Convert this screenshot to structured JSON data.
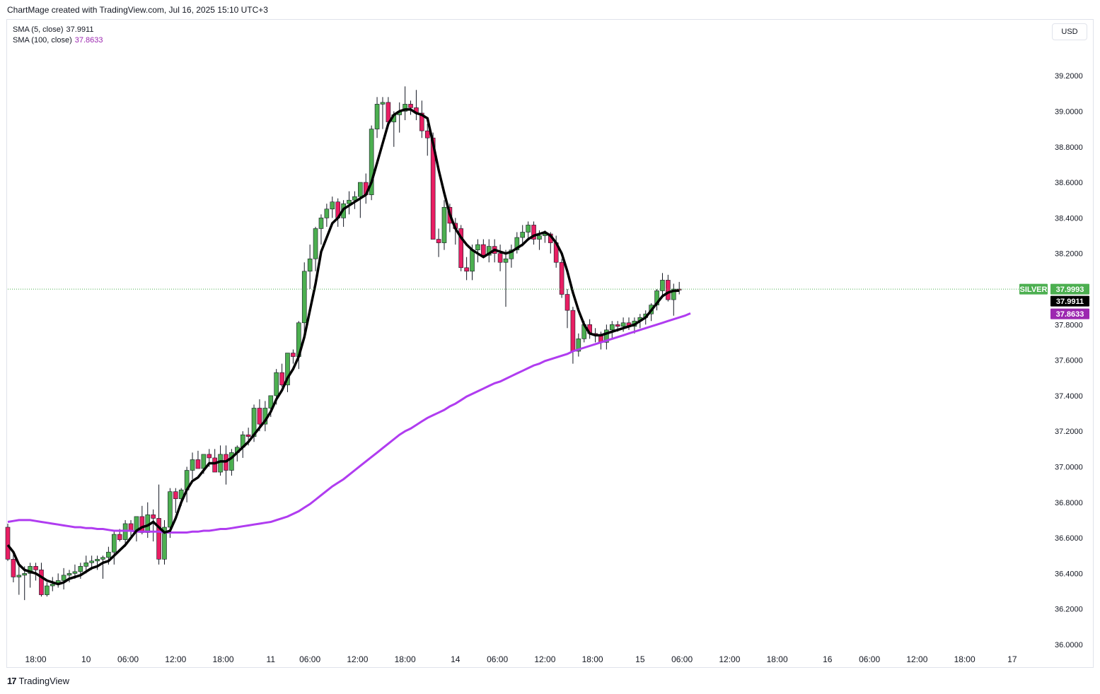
{
  "header": {
    "caption": "ChartMage created with TradingView.com, Jul 16, 2025 15:10 UTC+3"
  },
  "legend": [
    {
      "label": "SMA (5, close)",
      "value": "37.9911",
      "color": "#131722"
    },
    {
      "label": "SMA (100, close)",
      "value": "37.8633",
      "color": "#9c27b0"
    }
  ],
  "currency_button": "USD",
  "footer": {
    "logo_mark": "17",
    "brand": "TradingView"
  },
  "colors": {
    "up": "#4caf50",
    "down": "#e91e63",
    "sma5": "#000000",
    "sma100": "#b03cf0",
    "badge_symbol": "#4caf50",
    "badge_sma5": "#000000",
    "badge_sma100": "#9c27b0"
  },
  "chart_data": {
    "type": "candlestick",
    "symbol": "SILVER",
    "ylim": [
      36.0,
      39.3
    ],
    "yticks": [
      "39.2000",
      "39.0000",
      "38.8000",
      "38.6000",
      "38.4000",
      "38.2000",
      "38.0000",
      "37.8000",
      "37.6000",
      "37.4000",
      "37.2000",
      "37.0000",
      "36.8000",
      "36.6000",
      "36.4000",
      "36.2000",
      "36.0000"
    ],
    "xticks": [
      {
        "label": "18:00",
        "i": 5
      },
      {
        "label": "10",
        "i": 14
      },
      {
        "label": "06:00",
        "i": 21.5
      },
      {
        "label": "12:00",
        "i": 30
      },
      {
        "label": "18:00",
        "i": 38.5
      },
      {
        "label": "11",
        "i": 47
      },
      {
        "label": "06:00",
        "i": 54
      },
      {
        "label": "12:00",
        "i": 62.5
      },
      {
        "label": "18:00",
        "i": 71
      },
      {
        "label": "14",
        "i": 80
      },
      {
        "label": "06:00",
        "i": 87.5
      },
      {
        "label": "12:00",
        "i": 96
      },
      {
        "label": "18:00",
        "i": 104.5
      },
      {
        "label": "15",
        "i": 113
      },
      {
        "label": "06:00",
        "i": 120.5
      },
      {
        "label": "12:00",
        "i": 129
      },
      {
        "label": "18:00",
        "i": 137.5
      },
      {
        "label": "16",
        "i": 146.5
      },
      {
        "label": "06:00",
        "i": 154
      },
      {
        "label": "12:00",
        "i": 162.5
      },
      {
        "label": "18:00",
        "i": 171
      },
      {
        "label": "17",
        "i": 179.5
      }
    ],
    "last_price": {
      "label": "SILVER",
      "value": "37.9993",
      "y": 37.9993
    },
    "sma5_last": {
      "value": "37.9911",
      "y": 37.9911
    },
    "sma100_last": {
      "value": "37.8633",
      "y": 37.8633
    },
    "candles_ohlc": [
      [
        36.66,
        36.68,
        36.47,
        36.48
      ],
      [
        36.48,
        36.52,
        36.35,
        36.38
      ],
      [
        36.38,
        36.45,
        36.28,
        36.39
      ],
      [
        36.39,
        36.44,
        36.25,
        36.4
      ],
      [
        36.4,
        36.46,
        36.32,
        36.44
      ],
      [
        36.44,
        36.46,
        36.36,
        36.42
      ],
      [
        36.42,
        36.46,
        36.27,
        36.28
      ],
      [
        36.28,
        36.35,
        36.27,
        36.33
      ],
      [
        36.33,
        36.38,
        36.3,
        36.34
      ],
      [
        36.34,
        36.4,
        36.32,
        36.36
      ],
      [
        36.36,
        36.43,
        36.31,
        36.39
      ],
      [
        36.39,
        36.42,
        36.35,
        36.4
      ],
      [
        36.4,
        36.45,
        36.37,
        36.41
      ],
      [
        36.41,
        36.46,
        36.37,
        36.44
      ],
      [
        36.44,
        36.5,
        36.4,
        36.46
      ],
      [
        36.46,
        36.5,
        36.42,
        36.47
      ],
      [
        36.47,
        36.5,
        36.42,
        36.48
      ],
      [
        36.48,
        36.5,
        36.37,
        36.49
      ],
      [
        36.49,
        36.55,
        36.45,
        36.52
      ],
      [
        36.52,
        36.64,
        36.45,
        36.62
      ],
      [
        36.62,
        36.65,
        36.58,
        36.59
      ],
      [
        36.59,
        36.7,
        36.55,
        36.68
      ],
      [
        36.68,
        36.7,
        36.6,
        36.64
      ],
      [
        36.64,
        36.7,
        36.58,
        36.72
      ],
      [
        36.72,
        36.78,
        36.62,
        36.63
      ],
      [
        36.63,
        36.8,
        36.6,
        36.73
      ],
      [
        36.73,
        36.76,
        36.58,
        36.71
      ],
      [
        36.71,
        36.9,
        36.45,
        36.48
      ],
      [
        36.48,
        36.7,
        36.45,
        36.66
      ],
      [
        36.66,
        36.88,
        36.6,
        36.86
      ],
      [
        36.86,
        36.88,
        36.74,
        36.82
      ],
      [
        36.82,
        36.88,
        36.78,
        36.87
      ],
      [
        36.87,
        37.0,
        36.8,
        36.98
      ],
      [
        36.98,
        37.08,
        36.93,
        37.04
      ],
      [
        37.04,
        37.09,
        36.99,
        36.99
      ],
      [
        36.99,
        37.05,
        36.96,
        37.07
      ],
      [
        37.07,
        37.1,
        37.0,
        37.05
      ],
      [
        37.05,
        37.1,
        36.98,
        36.97
      ],
      [
        36.97,
        37.12,
        36.95,
        37.07
      ],
      [
        37.07,
        37.12,
        36.9,
        36.98
      ],
      [
        36.98,
        37.1,
        36.95,
        37.08
      ],
      [
        37.08,
        37.12,
        37.03,
        37.11
      ],
      [
        37.11,
        37.2,
        37.05,
        37.18
      ],
      [
        37.18,
        37.22,
        37.12,
        37.17
      ],
      [
        37.17,
        37.35,
        37.14,
        37.33
      ],
      [
        37.33,
        37.38,
        37.2,
        37.24
      ],
      [
        37.24,
        37.37,
        37.2,
        37.33
      ],
      [
        37.33,
        37.4,
        37.28,
        37.4
      ],
      [
        37.4,
        37.55,
        37.35,
        37.53
      ],
      [
        37.53,
        37.58,
        37.45,
        37.46
      ],
      [
        37.46,
        37.62,
        37.42,
        37.64
      ],
      [
        37.64,
        37.66,
        37.58,
        37.62
      ],
      [
        37.62,
        37.82,
        37.55,
        37.81
      ],
      [
        37.81,
        38.15,
        37.75,
        38.1
      ],
      [
        38.1,
        38.25,
        38.0,
        38.17
      ],
      [
        38.17,
        38.35,
        38.1,
        38.34
      ],
      [
        38.34,
        38.42,
        38.25,
        38.4
      ],
      [
        38.4,
        38.48,
        38.35,
        38.45
      ],
      [
        38.45,
        38.52,
        38.4,
        38.49
      ],
      [
        38.49,
        38.51,
        38.35,
        38.4
      ],
      [
        38.4,
        38.5,
        38.35,
        38.48
      ],
      [
        38.48,
        38.55,
        38.42,
        38.5
      ],
      [
        38.5,
        38.55,
        38.45,
        38.52
      ],
      [
        38.52,
        38.6,
        38.4,
        38.6
      ],
      [
        38.6,
        38.65,
        38.48,
        38.53
      ],
      [
        38.53,
        38.92,
        38.5,
        38.9
      ],
      [
        38.9,
        39.08,
        38.85,
        39.04
      ],
      [
        39.04,
        39.08,
        38.9,
        39.05
      ],
      [
        39.05,
        39.08,
        38.92,
        38.94
      ],
      [
        38.94,
        39.0,
        38.8,
        38.98
      ],
      [
        38.98,
        39.05,
        38.88,
        39.0
      ],
      [
        39.0,
        39.14,
        38.95,
        39.04
      ],
      [
        39.04,
        39.06,
        38.98,
        39.02
      ],
      [
        39.02,
        39.12,
        38.95,
        38.99
      ],
      [
        38.99,
        39.06,
        38.85,
        38.89
      ],
      [
        38.89,
        38.93,
        38.75,
        38.85
      ],
      [
        38.85,
        38.88,
        38.3,
        38.28
      ],
      [
        38.28,
        38.34,
        38.18,
        38.26
      ],
      [
        38.26,
        38.5,
        38.22,
        38.46
      ],
      [
        38.46,
        38.48,
        38.32,
        38.37
      ],
      [
        38.37,
        38.4,
        38.25,
        38.34
      ],
      [
        38.34,
        38.36,
        38.1,
        38.12
      ],
      [
        38.12,
        38.18,
        38.05,
        38.1
      ],
      [
        38.1,
        38.25,
        38.05,
        38.22
      ],
      [
        38.22,
        38.28,
        38.15,
        38.25
      ],
      [
        38.25,
        38.28,
        38.18,
        38.19
      ],
      [
        38.19,
        38.28,
        38.15,
        38.24
      ],
      [
        38.24,
        38.28,
        38.15,
        38.2
      ],
      [
        38.2,
        38.25,
        38.1,
        38.15
      ],
      [
        38.15,
        38.22,
        37.9,
        38.17
      ],
      [
        38.17,
        38.25,
        38.12,
        38.22
      ],
      [
        38.22,
        38.32,
        38.2,
        38.29
      ],
      [
        38.29,
        38.36,
        38.24,
        38.32
      ],
      [
        38.32,
        38.38,
        38.28,
        38.36
      ],
      [
        38.36,
        38.38,
        38.25,
        38.28
      ],
      [
        38.28,
        38.33,
        38.22,
        38.3
      ],
      [
        38.3,
        38.33,
        38.26,
        38.31
      ],
      [
        38.31,
        38.32,
        38.2,
        38.26
      ],
      [
        38.26,
        38.3,
        38.12,
        38.15
      ],
      [
        38.15,
        38.17,
        37.95,
        37.97
      ],
      [
        37.97,
        38.0,
        37.78,
        37.88
      ],
      [
        37.88,
        37.9,
        37.58,
        37.65
      ],
      [
        37.65,
        37.75,
        37.62,
        37.72
      ],
      [
        37.72,
        37.82,
        37.7,
        37.8
      ],
      [
        37.8,
        37.83,
        37.72,
        37.75
      ],
      [
        37.75,
        37.78,
        37.7,
        37.74
      ],
      [
        37.74,
        37.76,
        37.66,
        37.7
      ],
      [
        37.7,
        37.8,
        37.66,
        37.77
      ],
      [
        37.77,
        37.82,
        37.72,
        37.8
      ],
      [
        37.8,
        37.82,
        37.76,
        37.79
      ],
      [
        37.79,
        37.84,
        37.76,
        37.81
      ],
      [
        37.81,
        37.84,
        37.77,
        37.79
      ],
      [
        37.79,
        37.84,
        37.75,
        37.82
      ],
      [
        37.82,
        37.86,
        37.78,
        37.84
      ],
      [
        37.84,
        37.88,
        37.8,
        37.86
      ],
      [
        37.86,
        37.92,
        37.82,
        37.91
      ],
      [
        37.91,
        38.0,
        37.88,
        37.99
      ],
      [
        37.99,
        38.09,
        37.95,
        38.05
      ],
      [
        38.05,
        38.08,
        37.93,
        37.94
      ],
      [
        37.94,
        38.03,
        37.85,
        38.0
      ],
      [
        38.0,
        38.04,
        37.97,
        37.9993
      ]
    ],
    "sma5": [
      36.56,
      36.52,
      36.45,
      36.42,
      36.41,
      36.4,
      36.38,
      36.36,
      36.35,
      36.34,
      36.35,
      36.37,
      36.38,
      36.39,
      36.41,
      36.43,
      36.44,
      36.46,
      36.47,
      36.5,
      36.53,
      36.56,
      36.6,
      36.64,
      36.66,
      36.67,
      36.69,
      36.66,
      36.63,
      36.64,
      36.71,
      36.8,
      36.87,
      36.92,
      36.94,
      36.98,
      37.02,
      37.02,
      37.03,
      37.03,
      37.05,
      37.08,
      37.11,
      37.14,
      37.18,
      37.22,
      37.26,
      37.31,
      37.38,
      37.43,
      37.5,
      37.55,
      37.62,
      37.73,
      37.88,
      38.03,
      38.21,
      38.29,
      38.37,
      38.4,
      38.45,
      38.47,
      38.49,
      38.51,
      38.53,
      38.6,
      38.71,
      38.82,
      38.93,
      38.98,
      39.0,
      39.01,
      39.01,
      38.99,
      38.98,
      38.96,
      38.82,
      38.67,
      38.54,
      38.42,
      38.34,
      38.29,
      38.25,
      38.22,
      38.2,
      38.18,
      38.2,
      38.22,
      38.21,
      38.2,
      38.21,
      38.23,
      38.25,
      38.28,
      38.3,
      38.31,
      38.32,
      38.3,
      38.26,
      38.2,
      38.1,
      37.98,
      37.88,
      37.8,
      37.75,
      37.74,
      37.74,
      37.75,
      37.76,
      37.77,
      37.78,
      37.79,
      37.8,
      37.82,
      37.84,
      37.88,
      37.92,
      37.96,
      37.98,
      37.99,
      37.9911
    ],
    "sma100": [
      36.69,
      36.695,
      36.7,
      36.7,
      36.7,
      36.695,
      36.69,
      36.685,
      36.68,
      36.675,
      36.67,
      36.665,
      36.66,
      36.66,
      36.655,
      36.655,
      36.65,
      36.65,
      36.645,
      36.64,
      36.64,
      36.64,
      36.64,
      36.635,
      36.635,
      36.635,
      36.635,
      36.635,
      36.63,
      36.63,
      36.63,
      36.63,
      36.63,
      36.635,
      36.635,
      36.64,
      36.64,
      36.645,
      36.65,
      36.65,
      36.655,
      36.66,
      36.665,
      36.67,
      36.675,
      36.68,
      36.685,
      36.69,
      36.7,
      36.71,
      36.72,
      36.735,
      36.75,
      36.77,
      36.79,
      36.815,
      36.84,
      36.865,
      36.89,
      36.91,
      36.93,
      36.955,
      36.98,
      37.005,
      37.03,
      37.055,
      37.08,
      37.105,
      37.13,
      37.155,
      37.18,
      37.2,
      37.215,
      37.235,
      37.255,
      37.275,
      37.29,
      37.305,
      37.32,
      37.34,
      37.355,
      37.375,
      37.395,
      37.41,
      37.425,
      37.44,
      37.455,
      37.47,
      37.48,
      37.495,
      37.51,
      37.525,
      37.54,
      37.555,
      37.57,
      37.58,
      37.595,
      37.605,
      37.615,
      37.625,
      37.635,
      37.65,
      37.66,
      37.67,
      37.68,
      37.69,
      37.7,
      37.71,
      37.72,
      37.73,
      37.74,
      37.75,
      37.76,
      37.77,
      37.78,
      37.79,
      37.8,
      37.81,
      37.82,
      37.83,
      37.84,
      37.85,
      37.8633
    ]
  }
}
